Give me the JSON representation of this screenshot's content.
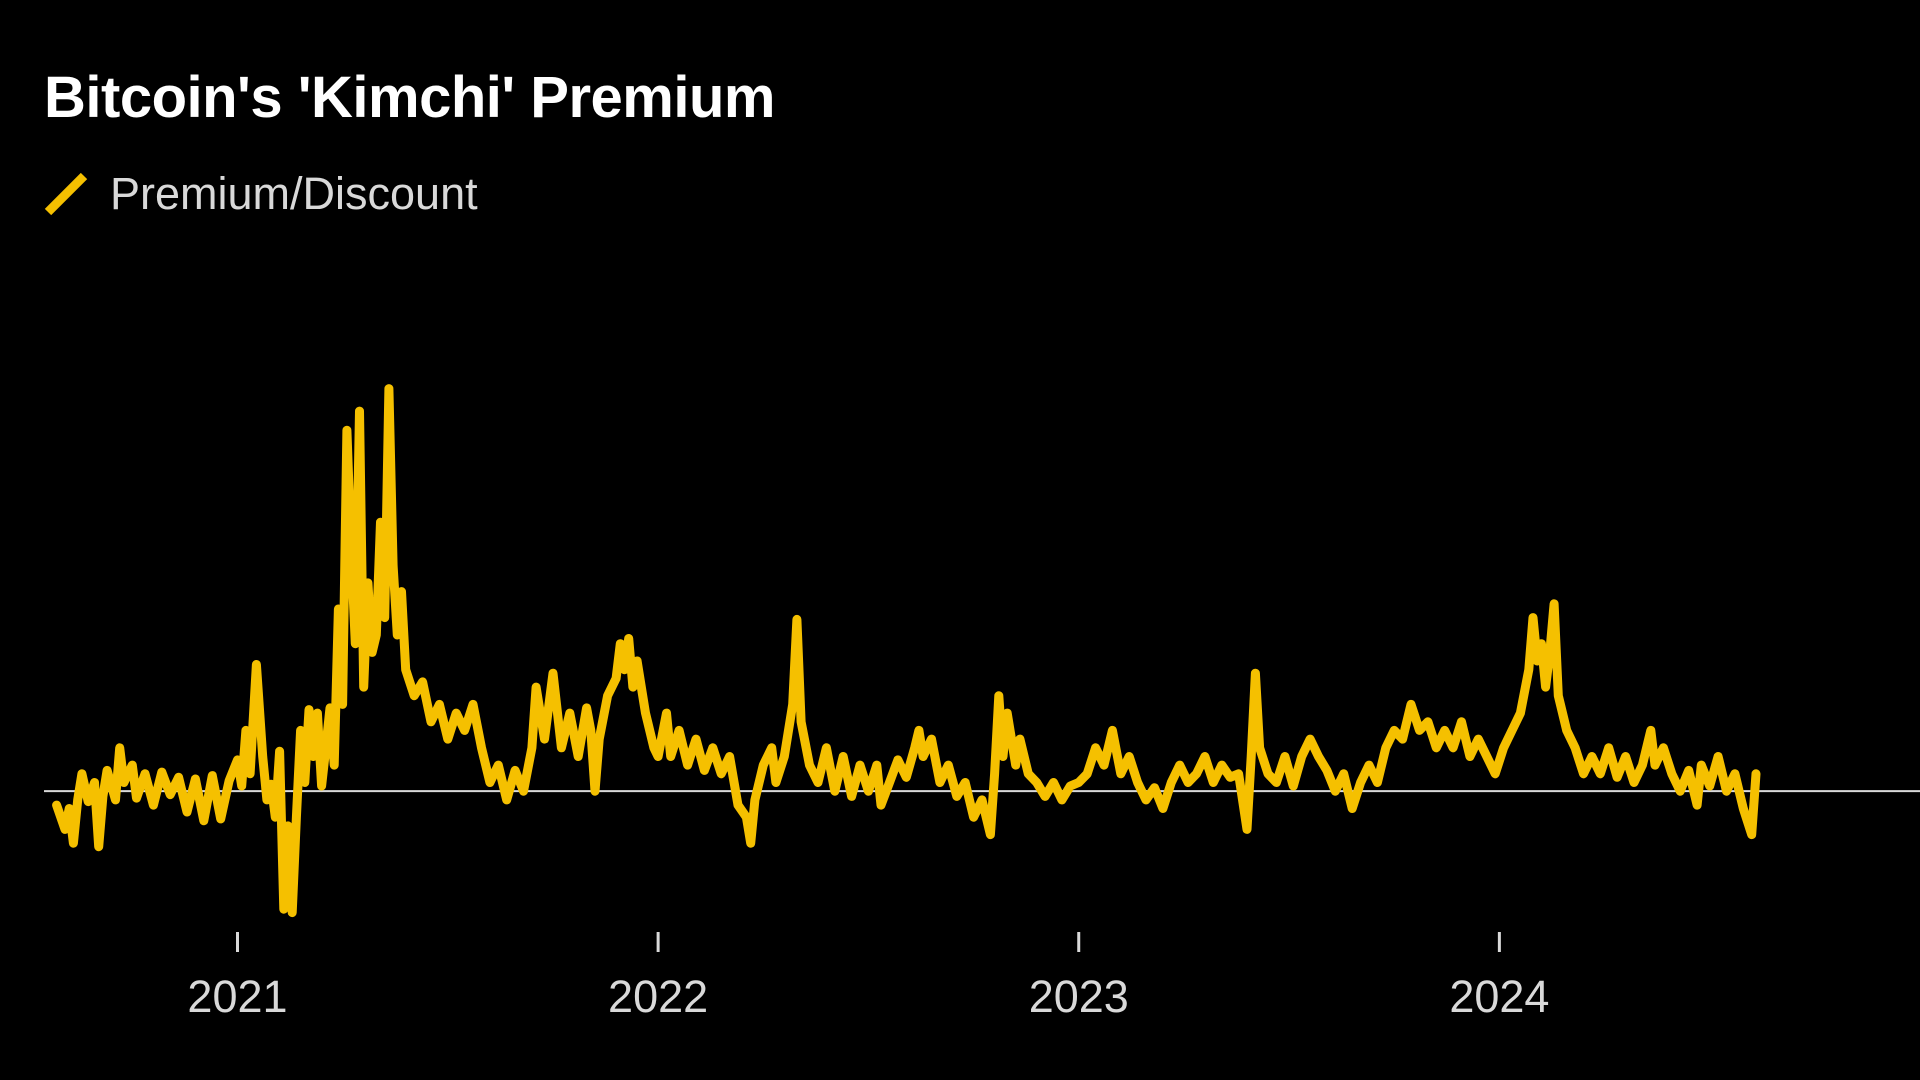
{
  "title": "Bitcoin's 'Kimchi' Premium",
  "colors": {
    "background": "#000000",
    "series": "#f5c000",
    "baseline": "#d9d9d9",
    "text": "#ffffff",
    "muted_text": "#d9d9d9"
  },
  "chart_data": {
    "type": "line",
    "title": "Bitcoin's 'Kimchi' Premium",
    "xlabel": "",
    "ylabel": "",
    "legend": {
      "position": "top-left",
      "entries": [
        "Premium/Discount"
      ]
    },
    "grid": false,
    "baseline_value": 0,
    "x_ticks": [
      2021,
      2022,
      2023,
      2024
    ],
    "xlim": [
      2020.54,
      2025.0
    ],
    "ylim": [
      -8,
      26
    ],
    "series": [
      {
        "name": "Premium/Discount",
        "color": "#f5c000",
        "points": [
          [
            2020.57,
            -0.8
          ],
          [
            2020.59,
            -2.2
          ],
          [
            2020.6,
            -1.0
          ],
          [
            2020.61,
            -3.0
          ],
          [
            2020.62,
            -0.5
          ],
          [
            2020.63,
            1.0
          ],
          [
            2020.645,
            -0.6
          ],
          [
            2020.66,
            0.5
          ],
          [
            2020.67,
            -3.2
          ],
          [
            2020.68,
            -0.3
          ],
          [
            2020.69,
            1.2
          ],
          [
            2020.71,
            -0.5
          ],
          [
            2020.72,
            2.5
          ],
          [
            2020.73,
            0.5
          ],
          [
            2020.75,
            1.5
          ],
          [
            2020.76,
            -0.4
          ],
          [
            2020.78,
            1.0
          ],
          [
            2020.8,
            -0.8
          ],
          [
            2020.82,
            1.1
          ],
          [
            2020.84,
            -0.2
          ],
          [
            2020.86,
            0.8
          ],
          [
            2020.88,
            -1.2
          ],
          [
            2020.9,
            0.7
          ],
          [
            2020.92,
            -1.7
          ],
          [
            2020.94,
            0.9
          ],
          [
            2020.96,
            -1.6
          ],
          [
            2020.98,
            0.6
          ],
          [
            2021.0,
            1.8
          ],
          [
            2021.01,
            0.3
          ],
          [
            2021.02,
            3.5
          ],
          [
            2021.03,
            1.0
          ],
          [
            2021.045,
            7.3
          ],
          [
            2021.06,
            2.0
          ],
          [
            2021.07,
            -0.5
          ],
          [
            2021.08,
            0.4
          ],
          [
            2021.09,
            -1.5
          ],
          [
            2021.1,
            2.3
          ],
          [
            2021.11,
            -6.8
          ],
          [
            2021.12,
            -2.0
          ],
          [
            2021.13,
            -7.0
          ],
          [
            2021.14,
            -1.5
          ],
          [
            2021.15,
            3.5
          ],
          [
            2021.16,
            0.5
          ],
          [
            2021.17,
            4.7
          ],
          [
            2021.18,
            2.0
          ],
          [
            2021.19,
            4.5
          ],
          [
            2021.2,
            0.3
          ],
          [
            2021.21,
            2.5
          ],
          [
            2021.22,
            4.8
          ],
          [
            2021.23,
            1.5
          ],
          [
            2021.24,
            10.5
          ],
          [
            2021.25,
            5.0
          ],
          [
            2021.26,
            20.8
          ],
          [
            2021.27,
            14.0
          ],
          [
            2021.28,
            8.5
          ],
          [
            2021.29,
            21.9
          ],
          [
            2021.3,
            6.0
          ],
          [
            2021.31,
            12.0
          ],
          [
            2021.32,
            8.0
          ],
          [
            2021.33,
            9.0
          ],
          [
            2021.34,
            15.5
          ],
          [
            2021.35,
            10.0
          ],
          [
            2021.36,
            23.2
          ],
          [
            2021.37,
            13.0
          ],
          [
            2021.38,
            9.0
          ],
          [
            2021.39,
            11.5
          ],
          [
            2021.4,
            7.0
          ],
          [
            2021.42,
            5.5
          ],
          [
            2021.44,
            6.3
          ],
          [
            2021.46,
            4.0
          ],
          [
            2021.48,
            5.0
          ],
          [
            2021.5,
            3.0
          ],
          [
            2021.52,
            4.5
          ],
          [
            2021.54,
            3.5
          ],
          [
            2021.56,
            5.0
          ],
          [
            2021.58,
            2.5
          ],
          [
            2021.6,
            0.5
          ],
          [
            2021.62,
            1.5
          ],
          [
            2021.64,
            -0.5
          ],
          [
            2021.66,
            1.2
          ],
          [
            2021.68,
            0.0
          ],
          [
            2021.7,
            2.5
          ],
          [
            2021.71,
            6.0
          ],
          [
            2021.73,
            3.0
          ],
          [
            2021.75,
            6.8
          ],
          [
            2021.77,
            2.5
          ],
          [
            2021.79,
            4.5
          ],
          [
            2021.81,
            2.0
          ],
          [
            2021.83,
            4.8
          ],
          [
            2021.84,
            3.5
          ],
          [
            2021.85,
            0.0
          ],
          [
            2021.86,
            3.0
          ],
          [
            2021.88,
            5.5
          ],
          [
            2021.9,
            6.5
          ],
          [
            2021.91,
            8.5
          ],
          [
            2021.92,
            7.0
          ],
          [
            2021.93,
            8.8
          ],
          [
            2021.94,
            6.0
          ],
          [
            2021.95,
            7.5
          ],
          [
            2021.97,
            4.5
          ],
          [
            2021.99,
            2.5
          ],
          [
            2022.0,
            2.0
          ],
          [
            2022.02,
            4.5
          ],
          [
            2022.03,
            2.0
          ],
          [
            2022.05,
            3.5
          ],
          [
            2022.07,
            1.5
          ],
          [
            2022.09,
            3.0
          ],
          [
            2022.11,
            1.2
          ],
          [
            2022.13,
            2.5
          ],
          [
            2022.15,
            1.0
          ],
          [
            2022.17,
            2.0
          ],
          [
            2022.19,
            -0.8
          ],
          [
            2022.21,
            -1.5
          ],
          [
            2022.22,
            -3.0
          ],
          [
            2022.23,
            -0.5
          ],
          [
            2022.25,
            1.5
          ],
          [
            2022.27,
            2.5
          ],
          [
            2022.28,
            0.5
          ],
          [
            2022.3,
            2.0
          ],
          [
            2022.32,
            5.0
          ],
          [
            2022.33,
            9.9
          ],
          [
            2022.34,
            4.0
          ],
          [
            2022.36,
            1.5
          ],
          [
            2022.38,
            0.5
          ],
          [
            2022.4,
            2.5
          ],
          [
            2022.42,
            0.0
          ],
          [
            2022.44,
            2.0
          ],
          [
            2022.46,
            -0.3
          ],
          [
            2022.48,
            1.5
          ],
          [
            2022.5,
            0.0
          ],
          [
            2022.52,
            1.5
          ],
          [
            2022.53,
            -0.8
          ],
          [
            2022.55,
            0.5
          ],
          [
            2022.57,
            1.8
          ],
          [
            2022.59,
            0.8
          ],
          [
            2022.61,
            2.5
          ],
          [
            2022.62,
            3.5
          ],
          [
            2022.63,
            2.0
          ],
          [
            2022.65,
            3.0
          ],
          [
            2022.67,
            0.5
          ],
          [
            2022.69,
            1.5
          ],
          [
            2022.71,
            -0.3
          ],
          [
            2022.73,
            0.5
          ],
          [
            2022.75,
            -1.5
          ],
          [
            2022.77,
            -0.5
          ],
          [
            2022.79,
            -2.5
          ],
          [
            2022.8,
            1.0
          ],
          [
            2022.81,
            5.5
          ],
          [
            2022.82,
            2.0
          ],
          [
            2022.83,
            4.5
          ],
          [
            2022.85,
            1.5
          ],
          [
            2022.86,
            3.0
          ],
          [
            2022.88,
            1.0
          ],
          [
            2022.9,
            0.5
          ],
          [
            2022.92,
            -0.3
          ],
          [
            2022.94,
            0.5
          ],
          [
            2022.96,
            -0.5
          ],
          [
            2022.98,
            0.3
          ],
          [
            2023.0,
            0.5
          ],
          [
            2023.02,
            1.0
          ],
          [
            2023.04,
            2.5
          ],
          [
            2023.06,
            1.5
          ],
          [
            2023.08,
            3.5
          ],
          [
            2023.1,
            1.0
          ],
          [
            2023.12,
            2.0
          ],
          [
            2023.14,
            0.5
          ],
          [
            2023.16,
            -0.5
          ],
          [
            2023.18,
            0.2
          ],
          [
            2023.2,
            -1.0
          ],
          [
            2023.22,
            0.5
          ],
          [
            2023.24,
            1.5
          ],
          [
            2023.26,
            0.5
          ],
          [
            2023.28,
            1.0
          ],
          [
            2023.3,
            2.0
          ],
          [
            2023.32,
            0.5
          ],
          [
            2023.34,
            1.5
          ],
          [
            2023.36,
            0.8
          ],
          [
            2023.38,
            1.0
          ],
          [
            2023.4,
            -2.2
          ],
          [
            2023.41,
            2.0
          ],
          [
            2023.42,
            6.8
          ],
          [
            2023.43,
            2.5
          ],
          [
            2023.45,
            1.0
          ],
          [
            2023.47,
            0.5
          ],
          [
            2023.49,
            2.0
          ],
          [
            2023.51,
            0.3
          ],
          [
            2023.53,
            2.0
          ],
          [
            2023.55,
            3.0
          ],
          [
            2023.57,
            2.0
          ],
          [
            2023.59,
            1.2
          ],
          [
            2023.61,
            0.0
          ],
          [
            2023.63,
            1.0
          ],
          [
            2023.65,
            -1.0
          ],
          [
            2023.67,
            0.5
          ],
          [
            2023.69,
            1.5
          ],
          [
            2023.71,
            0.5
          ],
          [
            2023.73,
            2.5
          ],
          [
            2023.75,
            3.5
          ],
          [
            2023.77,
            3.0
          ],
          [
            2023.79,
            5.0
          ],
          [
            2023.81,
            3.5
          ],
          [
            2023.83,
            4.0
          ],
          [
            2023.85,
            2.5
          ],
          [
            2023.87,
            3.5
          ],
          [
            2023.89,
            2.5
          ],
          [
            2023.91,
            4.0
          ],
          [
            2023.93,
            2.0
          ],
          [
            2023.95,
            3.0
          ],
          [
            2023.97,
            2.0
          ],
          [
            2023.99,
            1.0
          ],
          [
            2024.01,
            2.5
          ],
          [
            2024.03,
            3.5
          ],
          [
            2024.05,
            4.5
          ],
          [
            2024.07,
            7.0
          ],
          [
            2024.08,
            10.0
          ],
          [
            2024.09,
            7.5
          ],
          [
            2024.1,
            8.5
          ],
          [
            2024.11,
            6.0
          ],
          [
            2024.12,
            8.0
          ],
          [
            2024.13,
            10.8
          ],
          [
            2024.14,
            5.5
          ],
          [
            2024.16,
            3.5
          ],
          [
            2024.18,
            2.5
          ],
          [
            2024.2,
            1.0
          ],
          [
            2024.22,
            2.0
          ],
          [
            2024.24,
            1.0
          ],
          [
            2024.26,
            2.5
          ],
          [
            2024.28,
            0.8
          ],
          [
            2024.3,
            2.0
          ],
          [
            2024.32,
            0.5
          ],
          [
            2024.34,
            1.5
          ],
          [
            2024.36,
            3.5
          ],
          [
            2024.37,
            1.5
          ],
          [
            2024.39,
            2.5
          ],
          [
            2024.41,
            1.0
          ],
          [
            2024.43,
            0.0
          ],
          [
            2024.45,
            1.2
          ],
          [
            2024.47,
            -0.8
          ],
          [
            2024.48,
            1.5
          ],
          [
            2024.5,
            0.3
          ],
          [
            2024.52,
            2.0
          ],
          [
            2024.54,
            0.0
          ],
          [
            2024.56,
            1.0
          ],
          [
            2024.58,
            -1.0
          ],
          [
            2024.6,
            -2.5
          ],
          [
            2024.61,
            1.0
          ]
        ]
      }
    ]
  }
}
